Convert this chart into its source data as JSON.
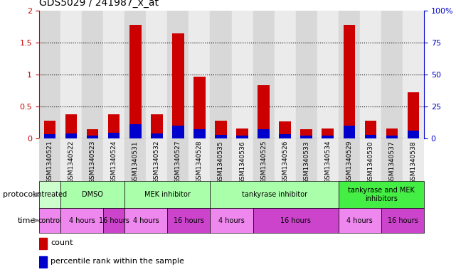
{
  "title": "GDS5029 / 241987_x_at",
  "samples": [
    "GSM1340521",
    "GSM1340522",
    "GSM1340523",
    "GSM1340524",
    "GSM1340531",
    "GSM1340532",
    "GSM1340527",
    "GSM1340528",
    "GSM1340535",
    "GSM1340536",
    "GSM1340525",
    "GSM1340526",
    "GSM1340533",
    "GSM1340534",
    "GSM1340529",
    "GSM1340530",
    "GSM1340537",
    "GSM1340538"
  ],
  "red_values": [
    0.28,
    0.38,
    0.15,
    0.38,
    1.78,
    0.38,
    1.65,
    0.97,
    0.28,
    0.16,
    0.83,
    0.27,
    0.15,
    0.16,
    1.78,
    0.28,
    0.16,
    0.72
  ],
  "blue_values": [
    0.07,
    0.08,
    0.04,
    0.09,
    0.22,
    0.08,
    0.2,
    0.14,
    0.06,
    0.04,
    0.14,
    0.07,
    0.04,
    0.04,
    0.2,
    0.06,
    0.04,
    0.12
  ],
  "ylim_left": [
    0,
    2
  ],
  "ylim_right": [
    0,
    100
  ],
  "yticks_left": [
    0,
    0.5,
    1,
    1.5,
    2
  ],
  "yticks_right": [
    0,
    25,
    50,
    75,
    100
  ],
  "ytick_labels_left": [
    "0",
    "0.5",
    "1",
    "1.5",
    "2"
  ],
  "ytick_labels_right": [
    "0",
    "25",
    "50",
    "75",
    "100%"
  ],
  "left_axis_color": "#cc0000",
  "right_axis_color": "#0000cc",
  "bar_color_red": "#cc0000",
  "bar_color_blue": "#0000cc",
  "bg_color": "#ffffff",
  "col_bg_even": "#d8d8d8",
  "col_bg_odd": "#ebebeb",
  "prot_groups": [
    {
      "label": "untreated",
      "start": 0,
      "end": 1,
      "color": "#ccffcc"
    },
    {
      "label": "DMSO",
      "start": 1,
      "end": 4,
      "color": "#aaffaa"
    },
    {
      "label": "MEK inhibitor",
      "start": 4,
      "end": 8,
      "color": "#aaffaa"
    },
    {
      "label": "tankyrase inhibitor",
      "start": 8,
      "end": 14,
      "color": "#aaffaa"
    },
    {
      "label": "tankyrase and MEK\ninhibitors",
      "start": 14,
      "end": 18,
      "color": "#44ee44"
    }
  ],
  "time_groups": [
    {
      "label": "control",
      "start": 0,
      "end": 1,
      "color": "#ee88ee"
    },
    {
      "label": "4 hours",
      "start": 1,
      "end": 3,
      "color": "#ee88ee"
    },
    {
      "label": "16 hours",
      "start": 3,
      "end": 4,
      "color": "#cc44cc"
    },
    {
      "label": "4 hours",
      "start": 4,
      "end": 6,
      "color": "#ee88ee"
    },
    {
      "label": "16 hours",
      "start": 6,
      "end": 8,
      "color": "#cc44cc"
    },
    {
      "label": "4 hours",
      "start": 8,
      "end": 10,
      "color": "#ee88ee"
    },
    {
      "label": "16 hours",
      "start": 10,
      "end": 14,
      "color": "#cc44cc"
    },
    {
      "label": "4 hours",
      "start": 14,
      "end": 16,
      "color": "#ee88ee"
    },
    {
      "label": "16 hours",
      "start": 16,
      "end": 18,
      "color": "#cc44cc"
    }
  ],
  "bar_width": 0.55
}
